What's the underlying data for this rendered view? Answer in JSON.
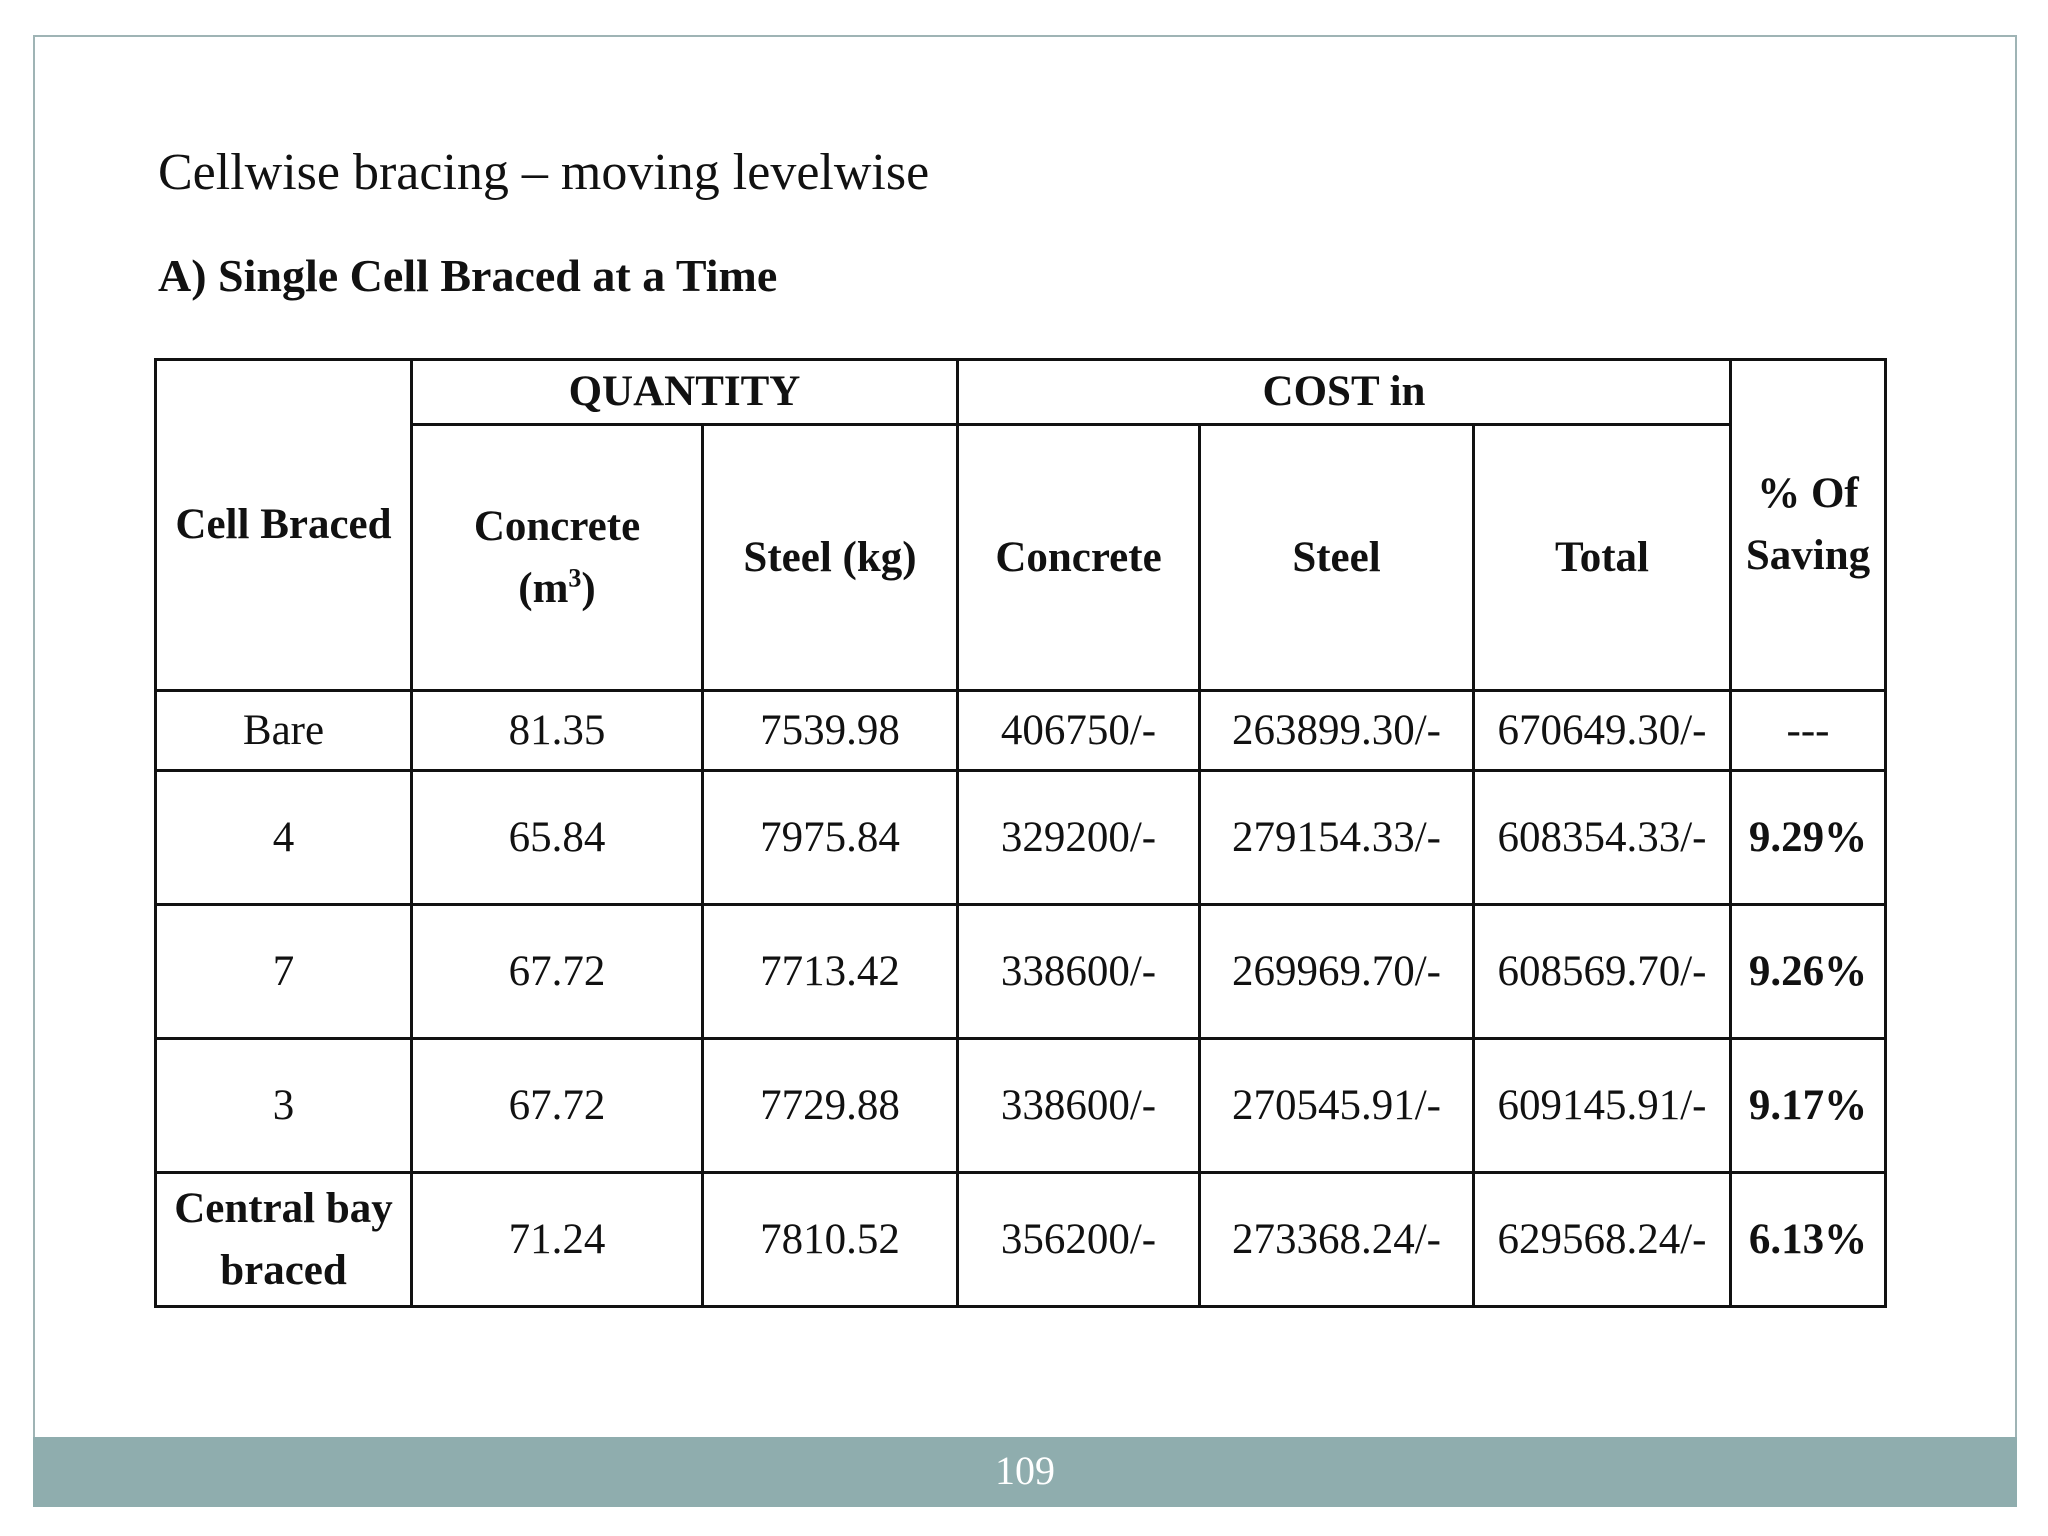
{
  "slide": {
    "title": "Cellwise bracing – moving levelwise",
    "section_heading": "A) Single Cell Braced at a Time",
    "page_number": "109"
  },
  "table": {
    "header": {
      "cell_braced": "Cell Braced",
      "quantity_group": "QUANTITY",
      "cost_group": "COST in",
      "saving_line1": "% Of",
      "saving_line2": "Saving",
      "qty_concrete_line1": "Concrete",
      "qty_concrete_unit_base": "(m",
      "qty_concrete_unit_sup": "3",
      "qty_concrete_unit_close": ")",
      "qty_steel": "Steel (kg)",
      "cost_concrete": "Concrete",
      "cost_steel": "Steel",
      "cost_total": "Total"
    },
    "rows": [
      {
        "cell": "Bare",
        "cell_line2": "",
        "concrete_qty": "81.35",
        "steel_qty": "7539.98",
        "concrete_cost": "406750/-",
        "steel_cost": "263899.30/-",
        "total_cost": "670649.30/-",
        "saving": "---"
      },
      {
        "cell": "4",
        "cell_line2": "",
        "concrete_qty": "65.84",
        "steel_qty": "7975.84",
        "concrete_cost": "329200/-",
        "steel_cost": "279154.33/-",
        "total_cost": "608354.33/-",
        "saving": "9.29%"
      },
      {
        "cell": "7",
        "cell_line2": "",
        "concrete_qty": "67.72",
        "steel_qty": "7713.42",
        "concrete_cost": "338600/-",
        "steel_cost": "269969.70/-",
        "total_cost": "608569.70/-",
        "saving": "9.26%"
      },
      {
        "cell": "3",
        "cell_line2": "",
        "concrete_qty": "67.72",
        "steel_qty": "7729.88",
        "concrete_cost": "338600/-",
        "steel_cost": "270545.91/-",
        "total_cost": "609145.91/-",
        "saving": "9.17%"
      },
      {
        "cell": "Central bay",
        "cell_line2": "braced",
        "concrete_qty": "71.24",
        "steel_qty": "7810.52",
        "concrete_cost": "356200/-",
        "steel_cost": "273368.24/-",
        "total_cost": "629568.24/-",
        "saving": "6.13%"
      }
    ]
  }
}
